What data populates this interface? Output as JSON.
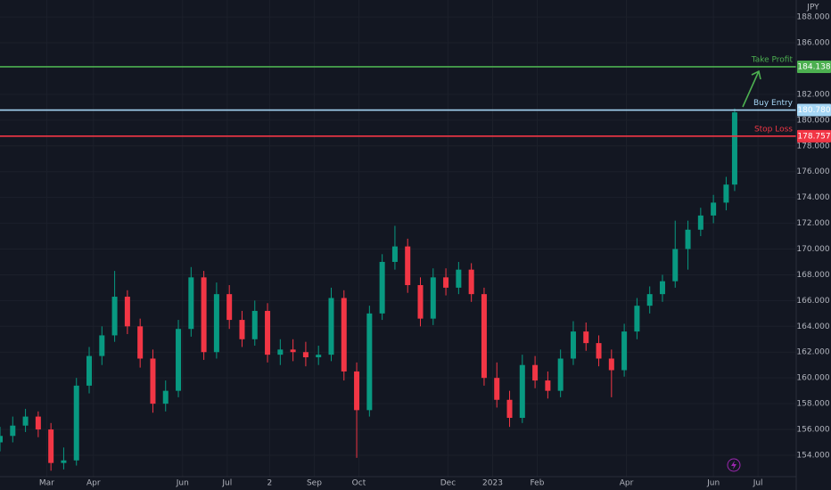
{
  "chart_data": {
    "type": "candlestick",
    "currency": "JPY",
    "x": [
      0,
      6,
      12,
      18,
      24,
      30,
      36,
      42,
      48,
      54,
      60,
      66,
      72,
      78,
      84,
      90,
      96,
      102,
      108,
      114,
      120,
      126,
      132,
      138,
      144,
      150,
      156,
      162,
      168,
      174,
      180,
      186,
      192,
      198,
      204,
      210,
      216,
      222,
      228,
      234,
      240,
      246,
      252,
      258,
      264,
      270,
      276,
      282,
      288,
      294,
      300,
      306,
      312,
      318,
      324,
      330,
      336,
      342,
      346
    ],
    "open": [
      155.0,
      155.5,
      156.3,
      157.0,
      156.0,
      153.4,
      153.6,
      159.4,
      161.7,
      163.3,
      166.3,
      164.0,
      161.5,
      158.0,
      159.0,
      163.8,
      167.8,
      162.0,
      166.5,
      164.5,
      163.0,
      165.2,
      161.8,
      162.2,
      162.0,
      161.6,
      161.8,
      166.2,
      160.5,
      157.5,
      165.0,
      169.0,
      170.2,
      167.2,
      164.6,
      167.8,
      167.0,
      168.4,
      166.5,
      160.0,
      158.3,
      156.9,
      161.0,
      159.8,
      159.0,
      161.5,
      163.6,
      162.7,
      161.5,
      160.6,
      163.6,
      165.6,
      166.5,
      167.5,
      170.0,
      171.5,
      172.6,
      173.6,
      175.0
    ],
    "high": [
      156.2,
      157.0,
      157.6,
      157.4,
      156.5,
      154.6,
      160.0,
      162.4,
      164.0,
      168.3,
      166.8,
      164.6,
      162.2,
      159.8,
      164.5,
      168.6,
      168.3,
      167.4,
      167.2,
      165.2,
      166.0,
      165.8,
      163.0,
      163.0,
      162.8,
      162.5,
      167.0,
      166.8,
      161.2,
      165.6,
      169.6,
      171.8,
      170.8,
      167.8,
      168.5,
      168.5,
      169.0,
      168.9,
      167.0,
      161.2,
      159.0,
      161.8,
      161.7,
      160.5,
      162.2,
      164.4,
      164.3,
      163.3,
      162.2,
      164.2,
      166.2,
      167.1,
      168.0,
      172.2,
      172.2,
      173.2,
      174.2,
      175.6,
      180.9
    ],
    "low": [
      154.3,
      155.0,
      155.8,
      155.4,
      152.8,
      152.9,
      153.2,
      158.8,
      161.0,
      162.8,
      163.4,
      160.8,
      157.3,
      157.4,
      158.5,
      163.2,
      161.4,
      161.5,
      163.8,
      162.4,
      162.5,
      161.2,
      161.0,
      161.3,
      160.9,
      161.0,
      161.3,
      159.8,
      153.8,
      157.0,
      164.5,
      168.4,
      166.6,
      164.0,
      164.1,
      166.4,
      166.5,
      165.9,
      159.4,
      157.7,
      156.2,
      156.5,
      159.2,
      158.4,
      158.5,
      161.0,
      162.1,
      160.9,
      158.5,
      160.1,
      163.0,
      165.0,
      165.9,
      167.0,
      168.4,
      171.0,
      172.0,
      173.0,
      174.5
    ],
    "close": [
      155.5,
      156.3,
      157.0,
      156.0,
      153.4,
      153.6,
      159.4,
      161.7,
      163.3,
      166.3,
      164.0,
      161.5,
      158.0,
      159.0,
      163.8,
      167.8,
      162.0,
      166.5,
      164.5,
      163.0,
      165.2,
      161.8,
      162.2,
      162.0,
      161.6,
      161.8,
      166.2,
      160.5,
      157.5,
      165.0,
      169.0,
      170.2,
      167.2,
      164.6,
      167.8,
      167.0,
      168.4,
      166.5,
      160.0,
      158.3,
      156.9,
      161.0,
      159.8,
      159.0,
      161.5,
      163.6,
      162.7,
      161.5,
      160.6,
      163.6,
      165.6,
      166.5,
      167.5,
      170.0,
      171.5,
      172.6,
      173.6,
      175.0,
      180.6
    ],
    "up_color": "#089981",
    "down_color": "#f23645",
    "levels": [
      {
        "name": "Take Profit",
        "value": 184.138,
        "value_label": "184.138",
        "color": "#4caf50"
      },
      {
        "name": "Buy Entry",
        "value": 180.78,
        "value_label": "180.780",
        "color": "#a5d6f5"
      },
      {
        "name": "Stop Loss",
        "value": 178.757,
        "value_label": "178.757",
        "color": "#f23645"
      }
    ],
    "xlim": [
      0,
      375
    ],
    "xticks": [
      {
        "value": 22,
        "label": "Mar"
      },
      {
        "value": 44,
        "label": "Apr"
      },
      {
        "value": 86,
        "label": "Jun"
      },
      {
        "value": 107,
        "label": "Jul"
      },
      {
        "value": 127,
        "label": "2"
      },
      {
        "value": 148,
        "label": "Sep"
      },
      {
        "value": 169,
        "label": "Oct"
      },
      {
        "value": 211,
        "label": "Dec"
      },
      {
        "value": 232,
        "label": "2023"
      },
      {
        "value": 253,
        "label": "Feb"
      },
      {
        "value": 295,
        "label": "Apr"
      },
      {
        "value": 336,
        "label": "Jun"
      },
      {
        "value": 357,
        "label": "Jul"
      }
    ],
    "ylim": [
      152.34,
      189.32
    ],
    "yticks": [
      {
        "value": 154,
        "label": "154.000"
      },
      {
        "value": 156,
        "label": "156.000"
      },
      {
        "value": 158,
        "label": "158.000"
      },
      {
        "value": 160,
        "label": "160.000"
      },
      {
        "value": 162,
        "label": "162.000"
      },
      {
        "value": 164,
        "label": "164.000"
      },
      {
        "value": 166,
        "label": "166.000"
      },
      {
        "value": 168,
        "label": "168.000"
      },
      {
        "value": 170,
        "label": "170.000"
      },
      {
        "value": 172,
        "label": "172.000"
      },
      {
        "value": 174,
        "label": "174.000"
      },
      {
        "value": 176,
        "label": "176.000"
      },
      {
        "value": 178,
        "label": "178.000"
      },
      {
        "value": 180,
        "label": "180.000"
      },
      {
        "value": 182,
        "label": "182.000"
      },
      {
        "value": 186,
        "label": "186.000"
      },
      {
        "value": 188,
        "label": "188.000"
      }
    ],
    "grid": true
  }
}
